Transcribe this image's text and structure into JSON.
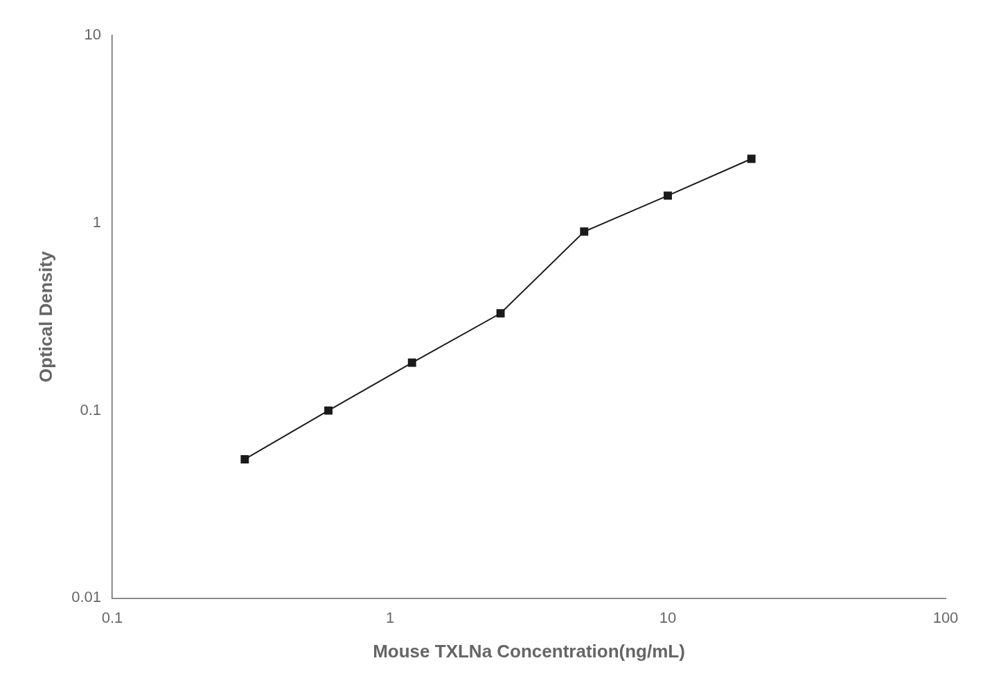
{
  "chart_data": {
    "type": "line",
    "x": [
      0.3,
      0.6,
      1.2,
      2.5,
      5.0,
      10.0,
      20.0
    ],
    "values": [
      0.055,
      0.1,
      0.18,
      0.33,
      0.9,
      1.4,
      2.2
    ],
    "xlabel": "Mouse TXLNa Concentration(ng/mL)",
    "ylabel": "Optical Density",
    "xlim": [
      0.1,
      100
    ],
    "ylim": [
      0.01,
      10
    ],
    "xticks": [
      0.1,
      1,
      10,
      100
    ],
    "yticks": [
      0.01,
      0.1,
      1,
      10
    ],
    "log": true,
    "grid": false,
    "color": "#1a1a1a",
    "marker": "square",
    "line_style": "solid"
  }
}
